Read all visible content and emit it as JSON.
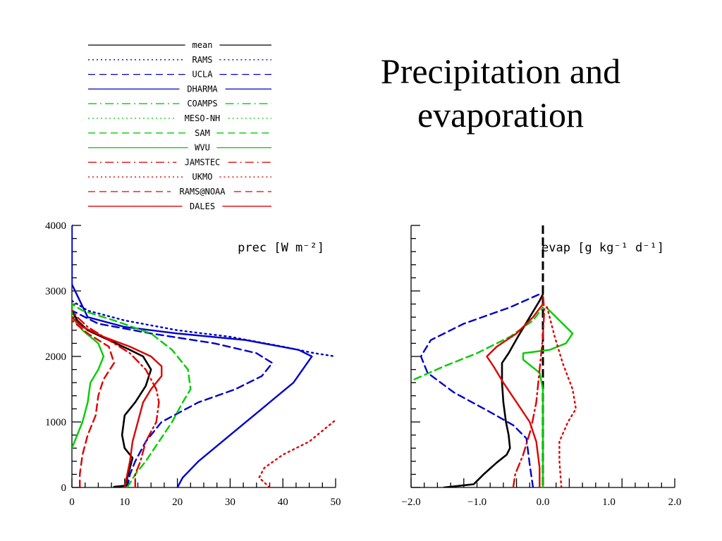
{
  "title_lines": [
    "Precipitation and",
    "evaporation"
  ],
  "legend": [
    {
      "name": "mean",
      "color": "#000000",
      "dash": "solid"
    },
    {
      "name": "RAMS",
      "color": "#0000cc",
      "dash": "dot"
    },
    {
      "name": "UCLA",
      "color": "#0000cc",
      "dash": "dash"
    },
    {
      "name": "DHARMA",
      "color": "#0000cc",
      "dash": "solid"
    },
    {
      "name": "COAMPS",
      "color": "#00cc00",
      "dash": "dashdot"
    },
    {
      "name": "MESO-NH",
      "color": "#00cc00",
      "dash": "dot"
    },
    {
      "name": "SAM",
      "color": "#00cc00",
      "dash": "dash"
    },
    {
      "name": "WVU",
      "color": "#00cc00",
      "dash": "solid"
    },
    {
      "name": "JAMSTEC",
      "color": "#dd0000",
      "dash": "dashdot"
    },
    {
      "name": "UKMO",
      "color": "#dd0000",
      "dash": "dot"
    },
    {
      "name": "RAMS@NOAA",
      "color": "#dd0000",
      "dash": "dash"
    },
    {
      "name": "DALES",
      "color": "#dd0000",
      "dash": "solid"
    }
  ],
  "chart_data": [
    {
      "type": "line",
      "label": "prec [W m⁻²]",
      "xlim": [
        0,
        50
      ],
      "ylim": [
        0,
        4000
      ],
      "xticks": [
        0,
        10,
        20,
        30,
        40,
        50
      ],
      "xtick_labels": [
        "0",
        "10",
        "20",
        "30",
        "40",
        "50"
      ],
      "yticks": [
        0,
        1000,
        2000,
        3000,
        4000
      ],
      "ytick_labels": [
        "0",
        "1000",
        "2000",
        "3000",
        "4000"
      ],
      "series": [
        {
          "name": "mean",
          "points": [
            [
              8,
              10
            ],
            [
              10.5,
              30
            ],
            [
              10.5,
              150
            ],
            [
              11,
              300
            ],
            [
              11.5,
              450
            ],
            [
              10,
              600
            ],
            [
              9.5,
              800
            ],
            [
              10,
              1100
            ],
            [
              12,
              1300
            ],
            [
              14,
              1550
            ],
            [
              15,
              1800
            ],
            [
              13.5,
              2000
            ],
            [
              11,
              2100
            ],
            [
              7,
              2250
            ],
            [
              3,
              2400
            ],
            [
              1,
              2550
            ],
            [
              0,
              2700
            ],
            [
              0,
              2800
            ]
          ]
        },
        {
          "name": "RAMS",
          "points": [
            [
              0,
              2850
            ],
            [
              3,
              2700
            ],
            [
              10,
              2550
            ],
            [
              20,
              2400
            ],
            [
              30,
              2300
            ],
            [
              40,
              2150
            ],
            [
              46,
              2050
            ],
            [
              50,
              2000
            ]
          ]
        },
        {
          "name": "UCLA",
          "points": [
            [
              10.5,
              0
            ],
            [
              11,
              200
            ],
            [
              12,
              400
            ],
            [
              14,
              700
            ],
            [
              17,
              1000
            ],
            [
              24,
              1300
            ],
            [
              31,
              1500
            ],
            [
              36,
              1700
            ],
            [
              38,
              1900
            ],
            [
              35,
              2050
            ],
            [
              27,
              2200
            ],
            [
              15,
              2350
            ],
            [
              5,
              2500
            ],
            [
              0,
              2700
            ]
          ]
        },
        {
          "name": "DHARMA",
          "points": [
            [
              20,
              0
            ],
            [
              21,
              150
            ],
            [
              24,
              400
            ],
            [
              30,
              800
            ],
            [
              36,
              1200
            ],
            [
              42,
              1600
            ],
            [
              45.5,
              2000
            ],
            [
              43,
              2100
            ],
            [
              33,
              2250
            ],
            [
              20,
              2350
            ],
            [
              10,
              2450
            ],
            [
              3,
              2600
            ],
            [
              0,
              3100
            ],
            [
              0,
              4000
            ]
          ]
        },
        {
          "name": "COAMPS",
          "points": []
        },
        {
          "name": "MESO-NH",
          "points": []
        },
        {
          "name": "SAM",
          "points": [
            [
              10.5,
              0
            ],
            [
              12,
              200
            ],
            [
              14,
              400
            ],
            [
              16.5,
              700
            ],
            [
              19,
              1000
            ],
            [
              21,
              1300
            ],
            [
              22.5,
              1500
            ],
            [
              22,
              1800
            ],
            [
              19,
              2100
            ],
            [
              15,
              2350
            ],
            [
              8,
              2550
            ],
            [
              2,
              2700
            ],
            [
              0,
              2800
            ]
          ]
        },
        {
          "name": "WVU",
          "points": [
            [
              0,
              600
            ],
            [
              1,
              800
            ],
            [
              2,
              1000
            ],
            [
              3,
              1300
            ],
            [
              3.5,
              1600
            ],
            [
              5,
              1800
            ],
            [
              6,
              2000
            ],
            [
              5,
              2200
            ],
            [
              2,
              2400
            ],
            [
              0,
              2600
            ],
            [
              0,
              2800
            ]
          ]
        },
        {
          "name": "JAMSTEC",
          "points": [
            [
              12,
              0
            ],
            [
              12,
              200
            ],
            [
              13,
              400
            ],
            [
              14,
              700
            ],
            [
              16,
              1000
            ],
            [
              16.5,
              1300
            ],
            [
              16,
              1500
            ],
            [
              14,
              1800
            ],
            [
              11,
              2050
            ],
            [
              7,
              2250
            ],
            [
              3,
              2450
            ],
            [
              1,
              2600
            ],
            [
              0,
              2700
            ]
          ]
        },
        {
          "name": "UKMO",
          "points": [
            [
              37.5,
              0
            ],
            [
              35.5,
              150
            ],
            [
              36.5,
              300
            ],
            [
              40,
              500
            ],
            [
              45,
              700
            ],
            [
              50,
              1030
            ]
          ]
        },
        {
          "name": "RAMS@NOAA",
          "points": [
            [
              1.5,
              0
            ],
            [
              1.5,
              200
            ],
            [
              2,
              500
            ],
            [
              3,
              800
            ],
            [
              4.5,
              1100
            ],
            [
              5,
              1400
            ],
            [
              6,
              1650
            ],
            [
              8,
              1900
            ],
            [
              7,
              2150
            ],
            [
              3,
              2350
            ],
            [
              0,
              2550
            ]
          ]
        },
        {
          "name": "DALES",
          "points": [
            [
              10,
              0
            ],
            [
              10.5,
              200
            ],
            [
              11,
              400
            ],
            [
              11.5,
              700
            ],
            [
              12.5,
              1000
            ],
            [
              13.5,
              1300
            ],
            [
              15,
              1500
            ],
            [
              17,
              1700
            ],
            [
              17,
              1850
            ],
            [
              15,
              2000
            ],
            [
              11,
              2150
            ],
            [
              6,
              2300
            ],
            [
              2,
              2450
            ],
            [
              0,
              2600
            ]
          ]
        }
      ]
    },
    {
      "type": "line",
      "label": "evap [g kg⁻¹ d⁻¹]",
      "xlim": [
        -2.0,
        2.0
      ],
      "ylim": [
        0,
        4000
      ],
      "xticks": [
        -2.0,
        -1.0,
        0.0,
        1.0,
        2.0
      ],
      "xtick_labels": [
        "−2.0",
        "−1.0",
        "0.0",
        "1.0",
        "2.0"
      ],
      "yticks": [
        0,
        1000,
        2000,
        3000,
        4000
      ],
      "ytick_labels": [
        "",
        "",
        "",
        "",
        ""
      ],
      "series": [
        {
          "name": "mean",
          "points": [
            [
              -1.5,
              0
            ],
            [
              -1.05,
              50
            ],
            [
              -0.9,
              200
            ],
            [
              -0.7,
              380
            ],
            [
              -0.55,
              500
            ],
            [
              -0.5,
              600
            ],
            [
              -0.52,
              800
            ],
            [
              -0.56,
              1000
            ],
            [
              -0.6,
              1300
            ],
            [
              -0.62,
              1600
            ],
            [
              -0.62,
              1900
            ],
            [
              -0.52,
              2050
            ],
            [
              -0.38,
              2300
            ],
            [
              -0.2,
              2600
            ],
            [
              -0.05,
              2850
            ],
            [
              0,
              2950
            ]
          ]
        },
        {
          "name": "RAMS",
          "points": []
        },
        {
          "name": "UCLA",
          "points": [
            [
              -0.15,
              0
            ],
            [
              -0.2,
              350
            ],
            [
              -0.25,
              750
            ],
            [
              -0.45,
              950
            ],
            [
              -0.8,
              1150
            ],
            [
              -1.35,
              1450
            ],
            [
              -1.75,
              1750
            ],
            [
              -1.85,
              2000
            ],
            [
              -1.7,
              2250
            ],
            [
              -1.2,
              2500
            ],
            [
              -0.5,
              2750
            ],
            [
              -0.05,
              2950
            ]
          ]
        },
        {
          "name": "DHARMA",
          "points": []
        },
        {
          "name": "COAMPS",
          "points": []
        },
        {
          "name": "MESO-NH",
          "points": []
        },
        {
          "name": "SAM",
          "points": [
            [
              -1.95,
              1650
            ],
            [
              -1.5,
              1850
            ],
            [
              -1.0,
              2050
            ],
            [
              -0.5,
              2300
            ],
            [
              -0.15,
              2550
            ],
            [
              0,
              2750
            ]
          ]
        },
        {
          "name": "WVU",
          "points": [
            [
              0.0,
              0
            ],
            [
              0.0,
              1500
            ],
            [
              -0.05,
              1750
            ],
            [
              -0.3,
              1950
            ],
            [
              -0.3,
              2050
            ],
            [
              0.1,
              2100
            ],
            [
              0.35,
              2200
            ],
            [
              0.45,
              2350
            ],
            [
              0.25,
              2550
            ],
            [
              0.05,
              2750
            ]
          ]
        },
        {
          "name": "JAMSTEC",
          "points": [
            [
              -0.45,
              0
            ],
            [
              -0.42,
              200
            ],
            [
              -0.3,
              500
            ],
            [
              -0.18,
              900
            ],
            [
              -0.1,
              1300
            ],
            [
              -0.05,
              1800
            ],
            [
              0,
              2300
            ],
            [
              0.02,
              2700
            ],
            [
              0,
              2950
            ]
          ]
        },
        {
          "name": "UKMO",
          "points": [
            [
              0.28,
              0
            ],
            [
              0.25,
              400
            ],
            [
              0.25,
              700
            ],
            [
              0.38,
              1000
            ],
            [
              0.5,
              1200
            ],
            [
              0.45,
              1500
            ],
            [
              0.3,
              1900
            ],
            [
              0.18,
              2300
            ],
            [
              0.05,
              2800
            ]
          ]
        },
        {
          "name": "RAMS@NOAA",
          "points": []
        },
        {
          "name": "DALES",
          "points": [
            [
              -0.05,
              0
            ],
            [
              -0.05,
              300
            ],
            [
              -0.1,
              700
            ],
            [
              -0.2,
              1000
            ],
            [
              -0.4,
              1300
            ],
            [
              -0.6,
              1600
            ],
            [
              -0.75,
              1850
            ],
            [
              -0.85,
              2000
            ],
            [
              -0.7,
              2150
            ],
            [
              -0.4,
              2350
            ],
            [
              -0.15,
              2600
            ],
            [
              0,
              2800
            ]
          ]
        }
      ]
    }
  ]
}
